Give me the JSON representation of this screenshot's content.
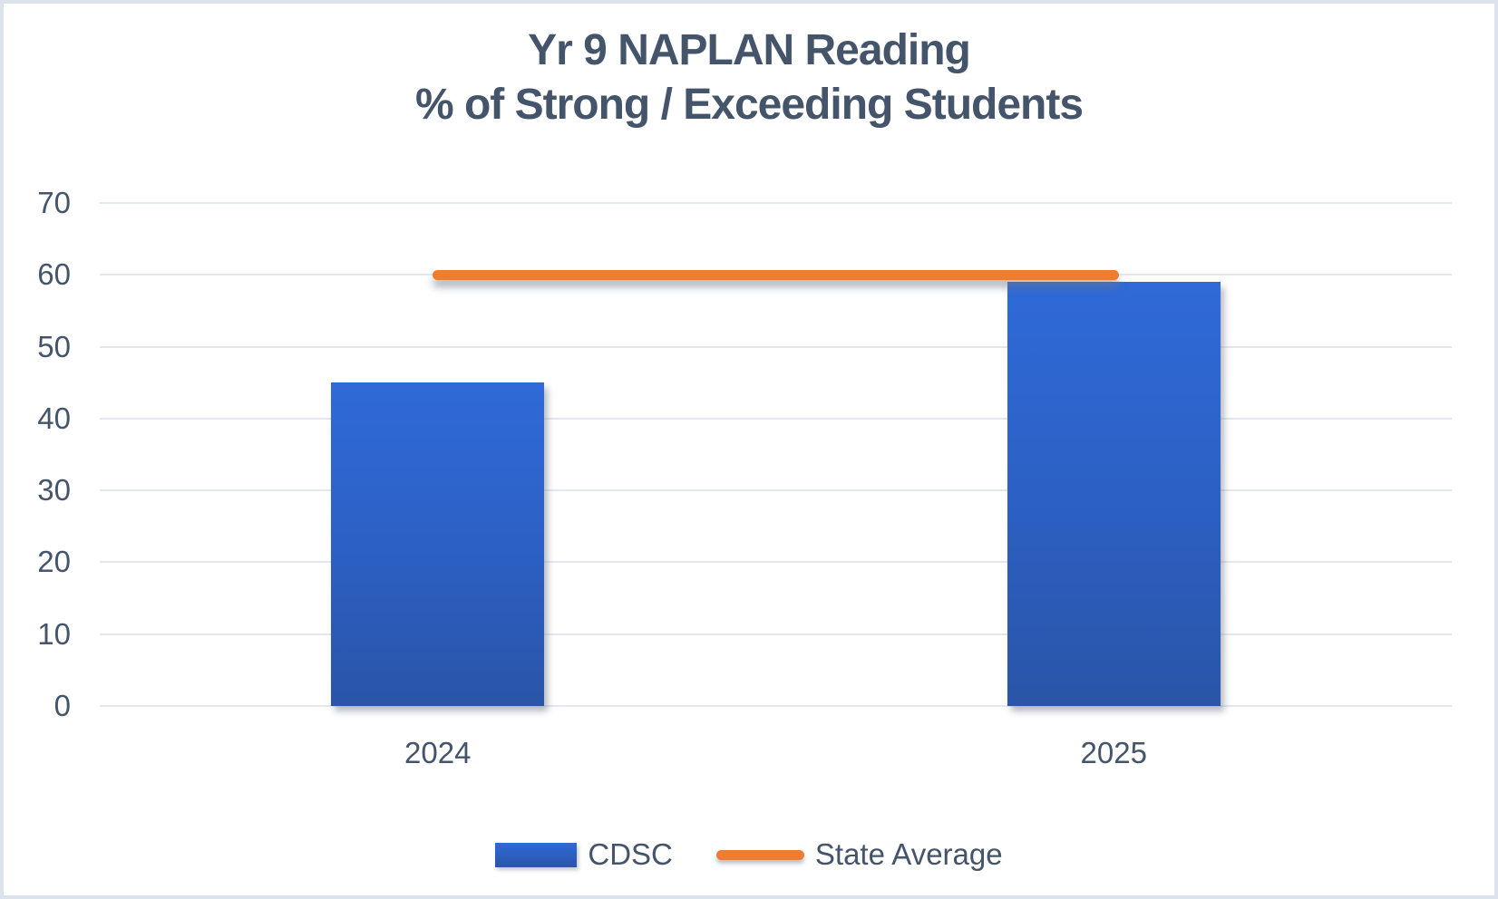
{
  "page": {
    "background_color": "#ffffff",
    "border_color": "#dde3ec"
  },
  "title": {
    "line1": "Yr 9 NAPLAN Reading",
    "line2": "% of Strong / Exceeding Students",
    "color": "#44546A"
  },
  "chart_data": {
    "type": "bar",
    "title": "Yr 9 NAPLAN Reading % of Strong / Exceeding Students",
    "categories": [
      "2024",
      "2025"
    ],
    "series": [
      {
        "name": "CDSC",
        "type": "bar",
        "values": [
          45,
          59
        ],
        "color_top": "#2f6ad8",
        "color_bottom": "#2a55a8"
      },
      {
        "name": "State Average",
        "type": "line",
        "values": [
          60,
          60
        ],
        "color": "#ed7d31"
      }
    ],
    "xlabel": "",
    "ylabel": "",
    "ylim": [
      0,
      70
    ],
    "yticks": [
      0,
      10,
      20,
      30,
      40,
      50,
      60,
      70
    ],
    "grid": true,
    "gridline_color": "#e3e8f0",
    "legend_position": "bottom",
    "text_color": "#44546A"
  },
  "legend": {
    "items": [
      {
        "label": "CDSC",
        "swatch": "bar-swatch"
      },
      {
        "label": "State Average",
        "swatch": "line-swatch"
      }
    ]
  }
}
